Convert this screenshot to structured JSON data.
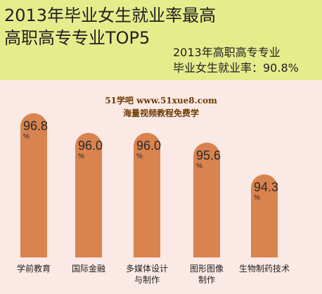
{
  "header": {
    "title_line1": "2013年毕业女生就业率最高",
    "title_line2": "高职高专专业TOP5",
    "summary_line1": "2013年高职高专专业",
    "summary_line2": "毕业女生就业率：90.8%"
  },
  "watermark": {
    "line1": "51学吧 www.51xue8.com",
    "line2": "海量视频教程免费学"
  },
  "colors": {
    "header_bg": "#e5ec8c",
    "page_bg": "#fbe9e6",
    "bar_fill": "#d9834e"
  },
  "chart_data": {
    "type": "bar",
    "categories": [
      "学前教育",
      "国际金融",
      "多媒体设计|与制作",
      "图形图像|制作",
      "生物制药技术"
    ],
    "values": [
      96.8,
      96.0,
      96.0,
      95.6,
      94.3
    ],
    "value_labels": [
      "96.8",
      "96.0",
      "96.0",
      "95.6",
      "94.3"
    ],
    "unit": "%",
    "title": "2013年毕业女生就业率最高高职高专专业TOP5",
    "xlabel": "",
    "ylabel": "",
    "grid": false,
    "legend": "none"
  }
}
